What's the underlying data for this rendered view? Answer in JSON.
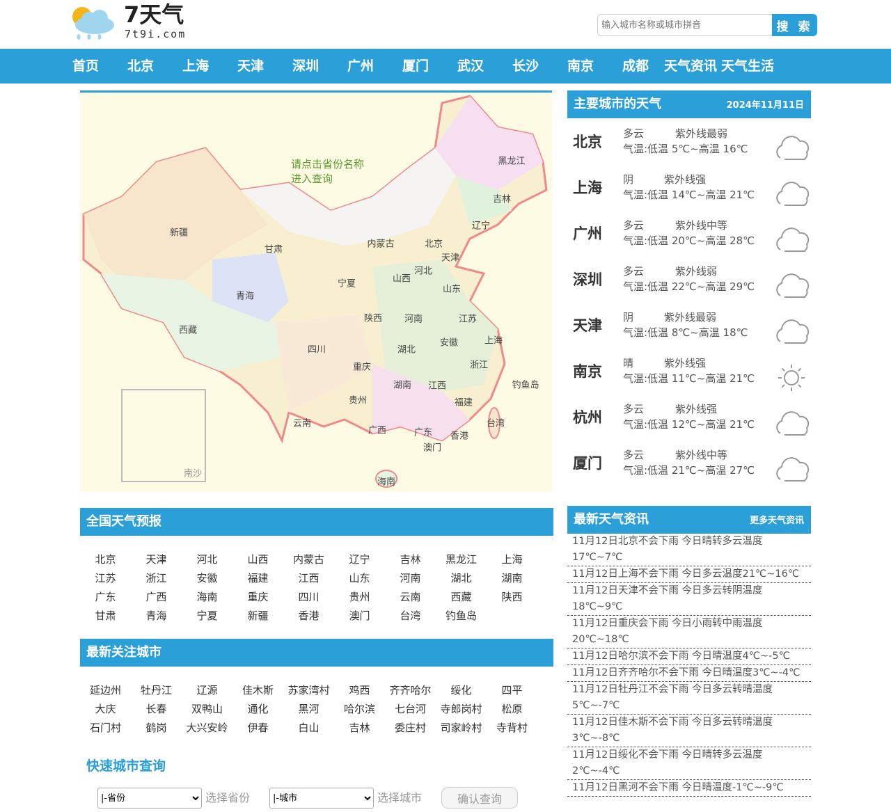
{
  "header": {
    "logo_title": "7天气",
    "logo_domain": "7t9i.com",
    "search_placeholder": "输入城市名称或城市拼音",
    "search_label": "搜 索"
  },
  "nav": [
    "首页",
    "北京",
    "上海",
    "天津",
    "深圳",
    "广州",
    "厦门",
    "武汉",
    "长沙",
    "南京",
    "成都",
    "天气资讯",
    "天气生活"
  ],
  "map": {
    "hint_line1": "请点击省份名称",
    "hint_line2": "进入查询",
    "provinces": [
      "新疆",
      "西藏",
      "青海",
      "甘肃",
      "内蒙古",
      "黑龙江",
      "吉林",
      "辽宁",
      "北京",
      "天津",
      "河北",
      "山西",
      "宁夏",
      "陕西",
      "河南",
      "山东",
      "江苏",
      "安徽",
      "上海",
      "湖北",
      "四川",
      "重庆",
      "浙江",
      "湖南",
      "江西",
      "贵州",
      "云南",
      "福建",
      "广西",
      "广东",
      "台湾",
      "香港",
      "澳门",
      "海南",
      "钓鱼岛",
      "南沙"
    ]
  },
  "main_cities": {
    "title": "主要城市的天气",
    "date": "2024年11月11日",
    "items": [
      {
        "name": "北京",
        "weather": "多云",
        "uv": "紫外线最弱",
        "temp": "气温:低温 5℃~高温 16℃",
        "icon": "cloud"
      },
      {
        "name": "上海",
        "weather": "阴",
        "uv": "紫外线强",
        "temp": "气温:低温 14℃~高温 21℃",
        "icon": "cloud"
      },
      {
        "name": "广州",
        "weather": "多云",
        "uv": "紫外线中等",
        "temp": "气温:低温 20℃~高温 28℃",
        "icon": "cloud"
      },
      {
        "name": "深圳",
        "weather": "多云",
        "uv": "紫外线弱",
        "temp": "气温:低温 22℃~高温 29℃",
        "icon": "cloud"
      },
      {
        "name": "天津",
        "weather": "阴",
        "uv": "紫外线最弱",
        "temp": "气温:低温 8℃~高温 18℃",
        "icon": "cloud"
      },
      {
        "name": "南京",
        "weather": "晴",
        "uv": "紫外线强",
        "temp": "气温:低温 11℃~高温 21℃",
        "icon": "sun"
      },
      {
        "name": "杭州",
        "weather": "多云",
        "uv": "紫外线强",
        "temp": "气温:低温 12℃~高温 21℃",
        "icon": "cloud"
      },
      {
        "name": "厦门",
        "weather": "多云",
        "uv": "紫外线中等",
        "temp": "气温:低温 21℃~高温 27℃",
        "icon": "cloud"
      }
    ]
  },
  "forecast": {
    "title": "全国天气预报",
    "items": [
      "北京",
      "天津",
      "河北",
      "山西",
      "内蒙古",
      "辽宁",
      "吉林",
      "黑龙江",
      "上海",
      "江苏",
      "浙江",
      "安徽",
      "福建",
      "江西",
      "山东",
      "河南",
      "湖北",
      "湖南",
      "广东",
      "广西",
      "海南",
      "重庆",
      "四川",
      "贵州",
      "云南",
      "西藏",
      "陕西",
      "甘肃",
      "青海",
      "宁夏",
      "新疆",
      "香港",
      "澳门",
      "台湾",
      "钓鱼岛"
    ]
  },
  "followed": {
    "title": "最新关注城市",
    "items": [
      "延边州",
      "牡丹江",
      "辽源",
      "佳木斯",
      "苏家湾村",
      "鸡西",
      "齐齐哈尔",
      "绥化",
      "四平",
      "大庆",
      "长春",
      "双鸭山",
      "通化",
      "黑河",
      "哈尔滨",
      "七台河",
      "寺郎岗村",
      "松原",
      "石门村",
      "鹤岗",
      "大兴安岭",
      "伊春",
      "白山",
      "吉林",
      "委庄村",
      "司家岭村",
      "寺背村"
    ]
  },
  "quick": {
    "title": "快速城市查询",
    "province_option": "|-省份",
    "province_label": "选择省份",
    "city_option": "|-城市",
    "city_label": "选择城市",
    "confirm": "确认查询"
  },
  "news": {
    "title": "最新天气资讯",
    "more": "更多天气资讯",
    "items": [
      "11月12日北京不会下雨 今日晴转多云温度17℃~7℃",
      "11月12日上海不会下雨 今日多云温度21℃~16℃",
      "11月12日天津不会下雨 今日多云转阴温度18℃~9℃",
      "11月12日重庆会下雨 今日小雨转中雨温度20℃~18℃",
      "11月12日哈尔滨不会下雨 今日晴温度4℃~-5℃",
      "11月12日齐齐哈尔不会下雨 今日晴温度3℃~-4℃",
      "11月12日牡丹江不会下雨 今日多云转晴温度5℃~-7℃",
      "11月12日佳木斯不会下雨 今日多云转晴温度3℃~-8℃",
      "11月12日绥化不会下雨 今日晴转多云温度2℃~-4℃",
      "11月12日黑河不会下雨 今日晴温度-1℃~-9℃"
    ]
  },
  "colors": {
    "accent": "#2a9fd8"
  }
}
